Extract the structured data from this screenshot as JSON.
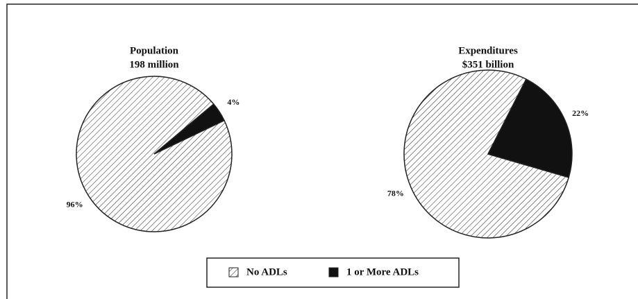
{
  "chart_data": [
    {
      "type": "pie",
      "title": "Population",
      "subtitle": "198 million",
      "categories": [
        "No ADLs",
        "1 or More ADLs"
      ],
      "values": [
        96,
        4
      ],
      "value_labels": [
        "96%",
        "4%"
      ]
    },
    {
      "type": "pie",
      "title": "Expenditures",
      "subtitle": "$351 billion",
      "categories": [
        "No ADLs",
        "1 or More ADLs"
      ],
      "values": [
        78,
        22
      ],
      "value_labels": [
        "78%",
        "22%"
      ]
    }
  ]
}
